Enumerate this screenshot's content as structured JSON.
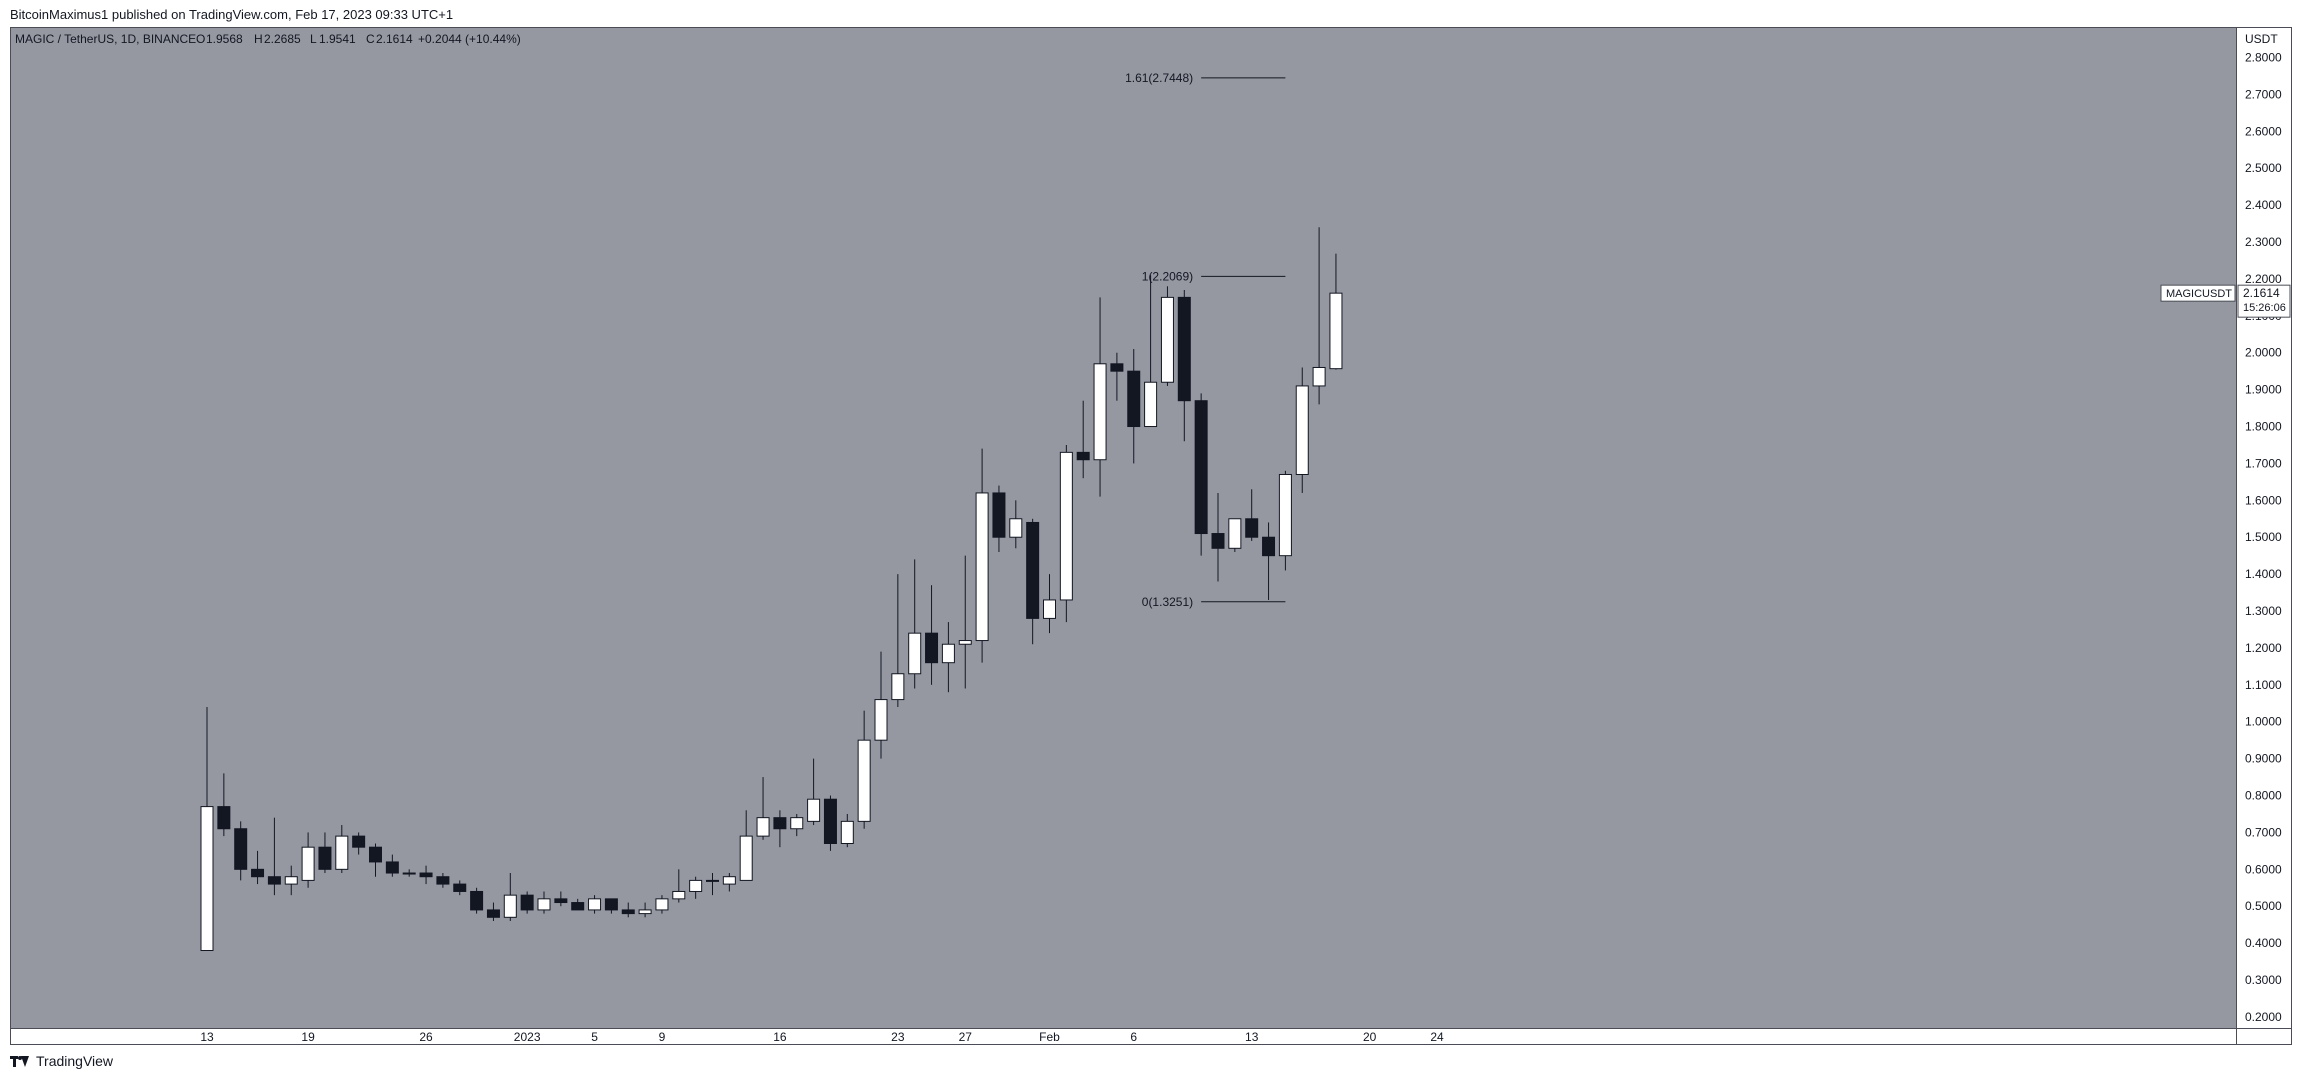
{
  "header": {
    "published_by": "BitcoinMaximus1 published on TradingView.com, Feb 17, 2023 09:33 UTC+1"
  },
  "legend": {
    "symbol_line": "MAGIC / TetherUS, 1D, BINANCE",
    "o_label": "O",
    "o_value": "1.9568",
    "h_label": "H",
    "h_value": "2.2685",
    "l_label": "L",
    "l_value": "1.9541",
    "c_label": "C",
    "c_value": "2.1614",
    "change": "+0.2044 (+10.44%)"
  },
  "price_axis": {
    "currency": "USDT",
    "ticks": [
      "2.8000",
      "2.7000",
      "2.6000",
      "2.5000",
      "2.4000",
      "2.3000",
      "2.2000",
      "2.1000",
      "2.0000",
      "1.9000",
      "1.8000",
      "1.7000",
      "1.6000",
      "1.5000",
      "1.4000",
      "1.3000",
      "1.2000",
      "1.1000",
      "1.0000",
      "0.9000",
      "0.8000",
      "0.7000",
      "0.6000",
      "0.5000",
      "0.4000",
      "0.3000",
      "0.2000"
    ]
  },
  "price_label": {
    "symbol": "MAGICUSDT",
    "price": "2.1614",
    "countdown": "15:26:06"
  },
  "footer": {
    "brand": "TradingView"
  },
  "colors": {
    "chart_background": "#9598a1",
    "up_candle": "#ffffff",
    "down_candle": "#131722",
    "wick": "#131722",
    "axis_text": "#131722"
  },
  "chart_data": {
    "type": "candlestick",
    "symbol": "MAGIC / TetherUS",
    "interval": "1D",
    "exchange": "BINANCE",
    "y_unit": "USDT",
    "ylim": [
      0.17,
      2.88
    ],
    "x_labels": [
      {
        "index": 0,
        "label": "13"
      },
      {
        "index": 6,
        "label": "19"
      },
      {
        "index": 13,
        "label": "26"
      },
      {
        "index": 19,
        "label": "2023"
      },
      {
        "index": 23,
        "label": "5"
      },
      {
        "index": 27,
        "label": "9"
      },
      {
        "index": 34,
        "label": "16"
      },
      {
        "index": 41,
        "label": "23"
      },
      {
        "index": 45,
        "label": "27"
      },
      {
        "index": 50,
        "label": "Feb"
      },
      {
        "index": 55,
        "label": "6"
      },
      {
        "index": 62,
        "label": "13"
      },
      {
        "index": 69,
        "label": "20"
      },
      {
        "index": 73,
        "label": "24"
      }
    ],
    "x_slots": 78,
    "candles": [
      {
        "o": 0.38,
        "h": 1.04,
        "l": 0.38,
        "c": 0.77
      },
      {
        "o": 0.77,
        "h": 0.86,
        "l": 0.69,
        "c": 0.71
      },
      {
        "o": 0.71,
        "h": 0.73,
        "l": 0.57,
        "c": 0.6
      },
      {
        "o": 0.6,
        "h": 0.65,
        "l": 0.56,
        "c": 0.58
      },
      {
        "o": 0.58,
        "h": 0.74,
        "l": 0.53,
        "c": 0.56
      },
      {
        "o": 0.56,
        "h": 0.61,
        "l": 0.53,
        "c": 0.58
      },
      {
        "o": 0.57,
        "h": 0.7,
        "l": 0.55,
        "c": 0.66
      },
      {
        "o": 0.66,
        "h": 0.7,
        "l": 0.59,
        "c": 0.6
      },
      {
        "o": 0.6,
        "h": 0.72,
        "l": 0.59,
        "c": 0.69
      },
      {
        "o": 0.69,
        "h": 0.7,
        "l": 0.64,
        "c": 0.66
      },
      {
        "o": 0.66,
        "h": 0.67,
        "l": 0.58,
        "c": 0.62
      },
      {
        "o": 0.62,
        "h": 0.64,
        "l": 0.58,
        "c": 0.59
      },
      {
        "o": 0.59,
        "h": 0.6,
        "l": 0.58,
        "c": 0.59
      },
      {
        "o": 0.59,
        "h": 0.61,
        "l": 0.56,
        "c": 0.58
      },
      {
        "o": 0.58,
        "h": 0.59,
        "l": 0.55,
        "c": 0.56
      },
      {
        "o": 0.56,
        "h": 0.57,
        "l": 0.53,
        "c": 0.54
      },
      {
        "o": 0.54,
        "h": 0.55,
        "l": 0.48,
        "c": 0.49
      },
      {
        "o": 0.49,
        "h": 0.51,
        "l": 0.46,
        "c": 0.47
      },
      {
        "o": 0.47,
        "h": 0.59,
        "l": 0.46,
        "c": 0.53
      },
      {
        "o": 0.53,
        "h": 0.54,
        "l": 0.48,
        "c": 0.49
      },
      {
        "o": 0.49,
        "h": 0.54,
        "l": 0.48,
        "c": 0.52
      },
      {
        "o": 0.52,
        "h": 0.54,
        "l": 0.5,
        "c": 0.51
      },
      {
        "o": 0.51,
        "h": 0.52,
        "l": 0.49,
        "c": 0.49
      },
      {
        "o": 0.49,
        "h": 0.53,
        "l": 0.48,
        "c": 0.52
      },
      {
        "o": 0.52,
        "h": 0.52,
        "l": 0.48,
        "c": 0.49
      },
      {
        "o": 0.49,
        "h": 0.51,
        "l": 0.47,
        "c": 0.48
      },
      {
        "o": 0.48,
        "h": 0.51,
        "l": 0.47,
        "c": 0.49
      },
      {
        "o": 0.49,
        "h": 0.53,
        "l": 0.48,
        "c": 0.52
      },
      {
        "o": 0.52,
        "h": 0.6,
        "l": 0.51,
        "c": 0.54
      },
      {
        "o": 0.54,
        "h": 0.58,
        "l": 0.52,
        "c": 0.57
      },
      {
        "o": 0.57,
        "h": 0.59,
        "l": 0.53,
        "c": 0.57
      },
      {
        "o": 0.56,
        "h": 0.59,
        "l": 0.54,
        "c": 0.58
      },
      {
        "o": 0.57,
        "h": 0.76,
        "l": 0.57,
        "c": 0.69
      },
      {
        "o": 0.69,
        "h": 0.85,
        "l": 0.68,
        "c": 0.74
      },
      {
        "o": 0.74,
        "h": 0.76,
        "l": 0.66,
        "c": 0.71
      },
      {
        "o": 0.71,
        "h": 0.75,
        "l": 0.69,
        "c": 0.74
      },
      {
        "o": 0.73,
        "h": 0.9,
        "l": 0.72,
        "c": 0.79
      },
      {
        "o": 0.79,
        "h": 0.8,
        "l": 0.65,
        "c": 0.67
      },
      {
        "o": 0.67,
        "h": 0.75,
        "l": 0.66,
        "c": 0.73
      },
      {
        "o": 0.73,
        "h": 1.03,
        "l": 0.71,
        "c": 0.95
      },
      {
        "o": 0.95,
        "h": 1.19,
        "l": 0.9,
        "c": 1.06
      },
      {
        "o": 1.06,
        "h": 1.4,
        "l": 1.04,
        "c": 1.13
      },
      {
        "o": 1.13,
        "h": 1.44,
        "l": 1.09,
        "c": 1.24
      },
      {
        "o": 1.24,
        "h": 1.37,
        "l": 1.1,
        "c": 1.16
      },
      {
        "o": 1.16,
        "h": 1.27,
        "l": 1.08,
        "c": 1.21
      },
      {
        "o": 1.21,
        "h": 1.45,
        "l": 1.09,
        "c": 1.22
      },
      {
        "o": 1.22,
        "h": 1.74,
        "l": 1.16,
        "c": 1.62
      },
      {
        "o": 1.62,
        "h": 1.64,
        "l": 1.46,
        "c": 1.5
      },
      {
        "o": 1.5,
        "h": 1.6,
        "l": 1.47,
        "c": 1.55
      },
      {
        "o": 1.54,
        "h": 1.55,
        "l": 1.21,
        "c": 1.28
      },
      {
        "o": 1.28,
        "h": 1.4,
        "l": 1.24,
        "c": 1.33
      },
      {
        "o": 1.33,
        "h": 1.75,
        "l": 1.27,
        "c": 1.73
      },
      {
        "o": 1.73,
        "h": 1.87,
        "l": 1.66,
        "c": 1.71
      },
      {
        "o": 1.71,
        "h": 2.15,
        "l": 1.61,
        "c": 1.97
      },
      {
        "o": 1.97,
        "h": 2.0,
        "l": 1.87,
        "c": 1.95
      },
      {
        "o": 1.95,
        "h": 2.01,
        "l": 1.7,
        "c": 1.8
      },
      {
        "o": 1.8,
        "h": 2.21,
        "l": 1.8,
        "c": 1.92
      },
      {
        "o": 1.92,
        "h": 2.18,
        "l": 1.91,
        "c": 2.15
      },
      {
        "o": 2.15,
        "h": 2.17,
        "l": 1.76,
        "c": 1.87
      },
      {
        "o": 1.87,
        "h": 1.89,
        "l": 1.45,
        "c": 1.51
      },
      {
        "o": 1.51,
        "h": 1.62,
        "l": 1.38,
        "c": 1.47
      },
      {
        "o": 1.47,
        "h": 1.55,
        "l": 1.46,
        "c": 1.55
      },
      {
        "o": 1.55,
        "h": 1.63,
        "l": 1.49,
        "c": 1.5
      },
      {
        "o": 1.5,
        "h": 1.54,
        "l": 1.33,
        "c": 1.45
      },
      {
        "o": 1.45,
        "h": 1.68,
        "l": 1.41,
        "c": 1.67
      },
      {
        "o": 1.67,
        "h": 1.96,
        "l": 1.62,
        "c": 1.91
      },
      {
        "o": 1.91,
        "h": 2.34,
        "l": 1.86,
        "c": 1.96
      },
      {
        "o": 1.9568,
        "h": 2.2685,
        "l": 1.9541,
        "c": 2.1614
      }
    ],
    "fib_levels": [
      {
        "label": "1.61(2.7448)",
        "value": 2.7448,
        "from_index": 59,
        "to_index": 64
      },
      {
        "label": "1(2.2069)",
        "value": 2.2069,
        "from_index": 59,
        "to_index": 64
      },
      {
        "label": "0(1.3251)",
        "value": 1.3251,
        "from_index": 59,
        "to_index": 64
      }
    ]
  }
}
